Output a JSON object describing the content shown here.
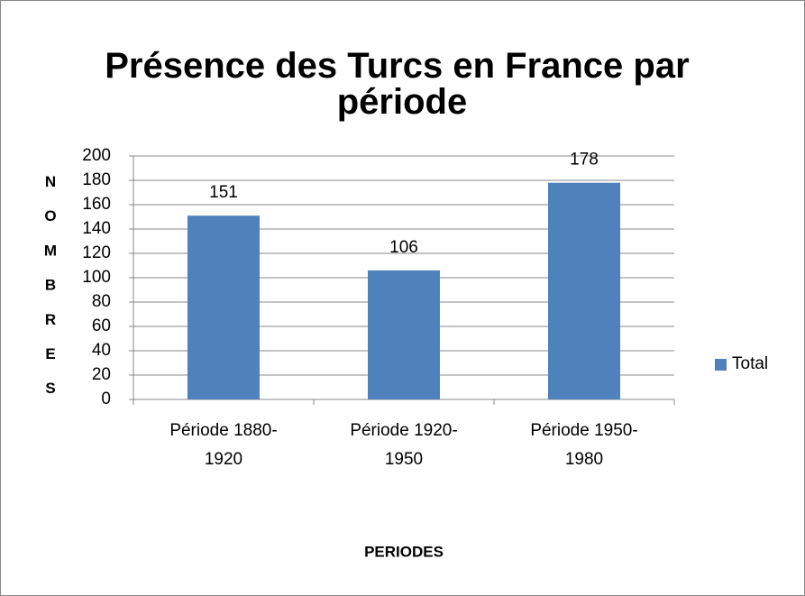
{
  "chart_data": {
    "type": "bar",
    "title": "Présence des Turcs en France par période",
    "categories": [
      "Période 1880-1920",
      "Période 1920-1950",
      "Période 1950-1980"
    ],
    "series": [
      {
        "name": "Total",
        "color": "#4f81bd",
        "values": [
          151,
          106,
          178
        ]
      }
    ],
    "ylim": [
      0,
      200
    ],
    "yticks": [
      0,
      20,
      40,
      60,
      80,
      100,
      120,
      140,
      160,
      180,
      200
    ],
    "grid": true,
    "legend": "right",
    "xlabel": "PERIODES",
    "ylabel": "NOMBRES"
  }
}
